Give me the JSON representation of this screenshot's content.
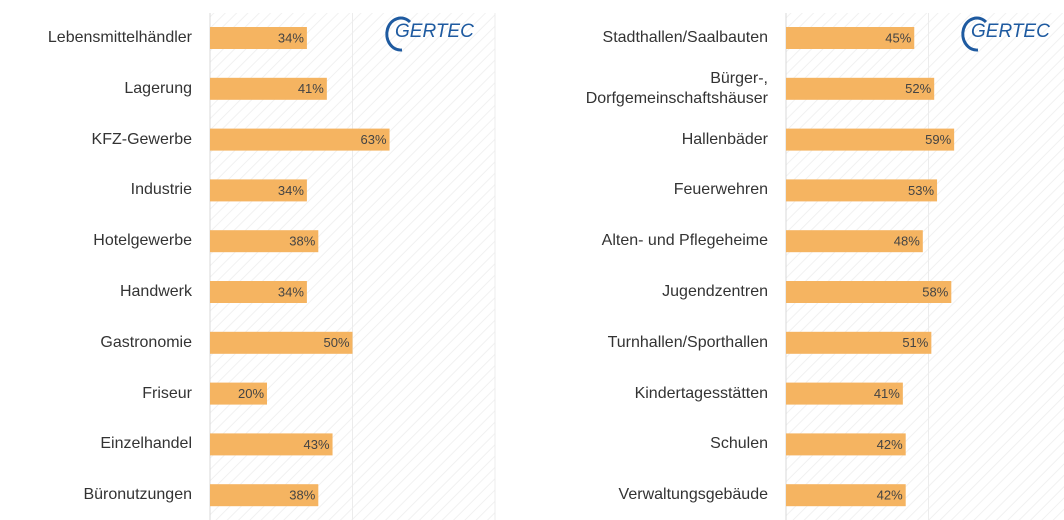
{
  "chart_data": [
    {
      "type": "bar",
      "orientation": "horizontal",
      "logo": "GERTEC",
      "categories": [
        "Lebensmittelhändler",
        "Lagerung",
        "KFZ-Gewerbe",
        "Industrie",
        "Hotelgewerbe",
        "Handwerk",
        "Gastronomie",
        "Friseur",
        "Einzelhandel",
        "Büronutzungen"
      ],
      "values": [
        34,
        41,
        63,
        34,
        38,
        34,
        50,
        20,
        43,
        38
      ],
      "value_labels": [
        "34%",
        "41%",
        "63%",
        "34%",
        "38%",
        "34%",
        "50%",
        "20%",
        "43%",
        "38%"
      ],
      "color": "#f5b461",
      "xlim": [
        0,
        100
      ],
      "xticks": [
        0,
        50,
        100
      ],
      "grid": true
    },
    {
      "type": "bar",
      "orientation": "horizontal",
      "logo": "GERTEC",
      "categories": [
        "Stadthallen/Saalbauten",
        "Bürger-,\nDorfgemeinschaftshäuser",
        "Hallenbäder",
        "Feuerwehren",
        "Alten- und Pflegeheime",
        "Jugendzentren",
        "Turnhallen/Sporthallen",
        "Kindertagesstätten",
        "Schulen",
        "Verwaltungsgebäude"
      ],
      "values": [
        45,
        52,
        59,
        53,
        48,
        58,
        51,
        41,
        42,
        42
      ],
      "value_labels": [
        "45%",
        "52%",
        "59%",
        "53%",
        "48%",
        "58%",
        "51%",
        "41%",
        "42%",
        "42%"
      ],
      "color": "#f5b461",
      "xlim": [
        0,
        100
      ],
      "xticks": [
        0,
        50,
        100
      ],
      "grid": true
    }
  ]
}
